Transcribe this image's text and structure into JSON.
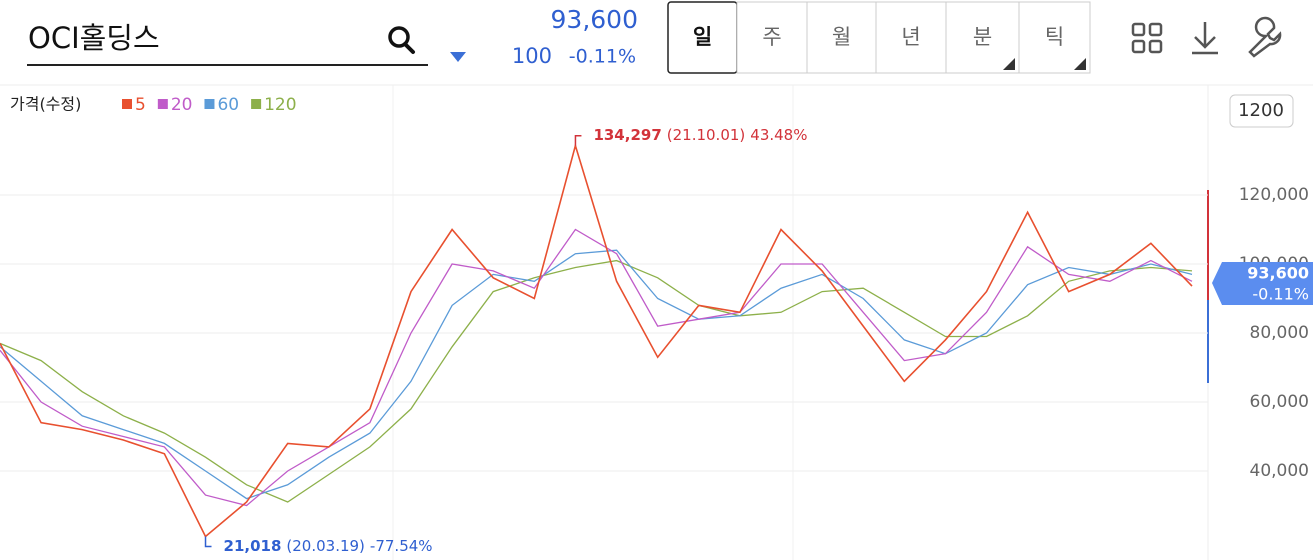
{
  "header": {
    "name": "OCI홀딩스",
    "price": "93,600",
    "change": "100",
    "change_pct": "-0.11%",
    "tabs": [
      "일",
      "주",
      "월",
      "년",
      "분",
      "틱"
    ],
    "period_button": "1200"
  },
  "chart_data": {
    "type": "line",
    "legend_title": "가격(수정)",
    "categories": [
      null,
      null,
      null,
      null,
      null,
      null,
      null,
      null,
      null,
      null,
      null,
      null,
      null,
      null,
      null,
      null,
      null,
      null,
      null,
      null,
      null,
      null,
      null,
      null,
      null,
      null,
      null,
      null,
      null,
      null
    ],
    "series": [
      {
        "name": "5",
        "color": "#e8502f",
        "values": [
          77000,
          54000,
          52000,
          49000,
          45000,
          21018,
          31000,
          48000,
          47000,
          58000,
          92000,
          110000,
          96000,
          90000,
          134297,
          95000,
          73000,
          88000,
          86000,
          110000,
          98000,
          82000,
          66000,
          78000,
          92000,
          115000,
          92000,
          97000,
          106000,
          93600
        ]
      },
      {
        "name": "20",
        "color": "#c05cc9",
        "values": [
          75000,
          60000,
          53000,
          50000,
          47000,
          33000,
          30000,
          40000,
          47000,
          54000,
          80000,
          100000,
          98000,
          93000,
          110000,
          103000,
          82000,
          84000,
          86000,
          100000,
          100000,
          86000,
          72000,
          74000,
          86000,
          105000,
          97000,
          95000,
          101000,
          95000
        ]
      },
      {
        "name": "60",
        "color": "#5b9bd8",
        "values": [
          76000,
          66000,
          56000,
          52000,
          48000,
          40000,
          32000,
          36000,
          44000,
          51000,
          66000,
          88000,
          97000,
          95000,
          103000,
          104000,
          90000,
          84000,
          85000,
          93000,
          97000,
          90000,
          78000,
          74000,
          80000,
          94000,
          99000,
          97000,
          100000,
          97000
        ]
      },
      {
        "name": "120",
        "color": "#8db04a",
        "values": [
          77000,
          72000,
          63000,
          56000,
          51000,
          44000,
          36000,
          31000,
          39000,
          47000,
          58000,
          76000,
          92000,
          96000,
          99000,
          101000,
          96000,
          88000,
          85000,
          86000,
          92000,
          93000,
          86000,
          79000,
          79000,
          85000,
          95000,
          98000,
          99000,
          98000
        ]
      }
    ],
    "ylim": [
      14200,
      151900
    ],
    "yticks": [
      {
        "value": 40000,
        "label": "40,000"
      },
      {
        "value": 60000,
        "label": "60,000"
      },
      {
        "value": 80000,
        "label": "80,000"
      },
      {
        "value": 100000,
        "label": "100,000"
      },
      {
        "value": 120000,
        "label": "120,000"
      }
    ],
    "grid": true,
    "annotations": [
      {
        "index": 14,
        "price": {
          "value": 134297,
          "label": "134,297"
        },
        "date": "(21.10.01)",
        "change": "43.48%",
        "color": "#d2333a"
      },
      {
        "index": 5,
        "price": {
          "value": 21018,
          "label": "21,018"
        },
        "date": "(20.03.19)",
        "change": "-77.54%",
        "color": "#2f5fd0"
      }
    ]
  }
}
